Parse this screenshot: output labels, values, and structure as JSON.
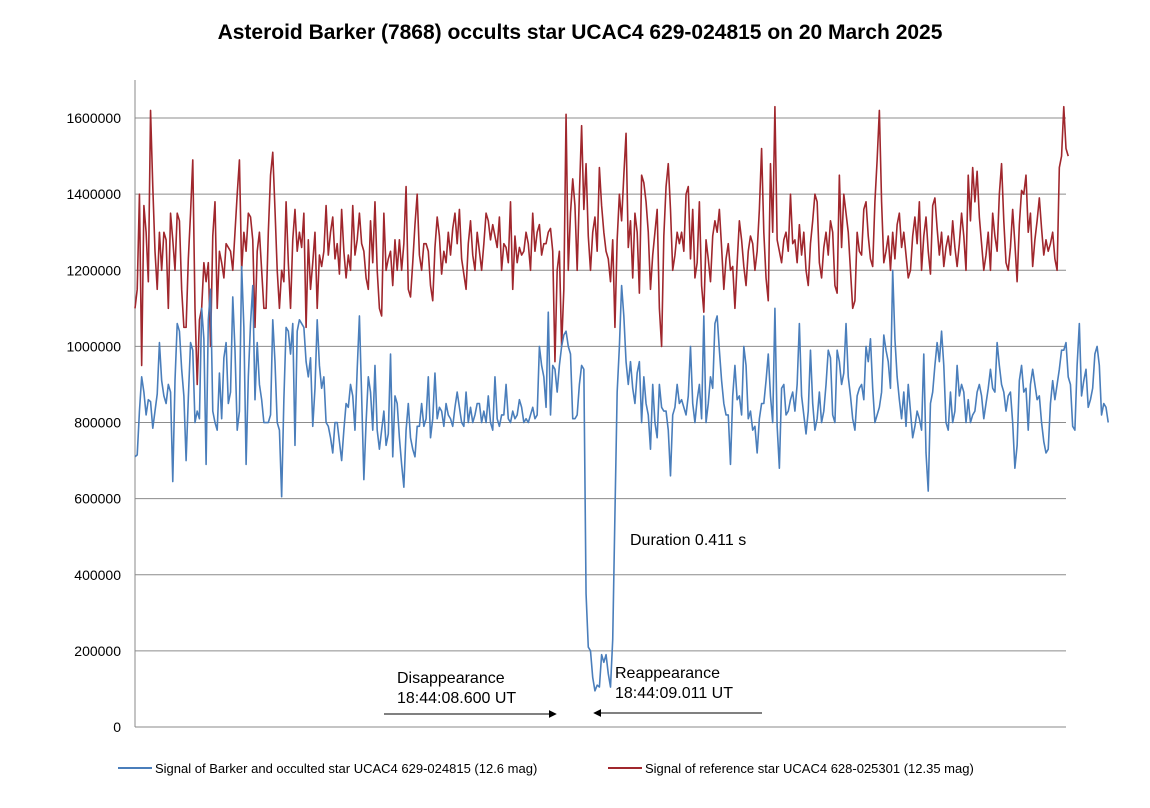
{
  "chart_data": {
    "type": "line",
    "title": "Asteroid Barker (7868) occults star UCAC4 629-024815 on 20 March 2025",
    "xlabel": "",
    "ylabel": "",
    "ylim": [
      0,
      1700000
    ],
    "yticks": [
      0,
      200000,
      400000,
      600000,
      800000,
      1000000,
      1200000,
      1400000,
      1600000
    ],
    "ytick_labels": [
      "0",
      "200000",
      "400000",
      "600000",
      "800000",
      "1000000",
      "1200000",
      "1400000",
      "1600000"
    ],
    "grid": "horizontal",
    "legend_position": "bottom",
    "x_sample_count": 420,
    "series": [
      {
        "name": "Signal of Barker and occulted star UCAC4 629-024815 (12.6 mag)",
        "color": "#4a7ebb",
        "event": {
          "drop_start": 205,
          "drop_end": 215,
          "low_level_min": 90000,
          "low_level_max": 210000
        },
        "values": [
          710000,
          715000,
          830000,
          920000,
          880000,
          820000,
          860000,
          855000,
          785000,
          830000,
          875000,
          1010000,
          910000,
          870000,
          850000,
          900000,
          880000,
          645000,
          910000,
          1060000,
          1040000,
          940000,
          870000,
          700000,
          865000,
          1010000,
          990000,
          800000,
          830000,
          810000,
          1100000,
          1020000,
          690000,
          1070000,
          1150000,
          830000,
          800000,
          780000,
          930000,
          810000,
          970000,
          1010000,
          850000,
          880000,
          1130000,
          990000,
          780000,
          830000,
          1210000,
          1050000,
          690000,
          920000,
          1060000,
          1160000,
          860000,
          1010000,
          900000,
          860000,
          800000,
          800000,
          800000,
          820000,
          1070000,
          960000,
          800000,
          780000,
          605000,
          860000,
          1050000,
          1040000,
          980000,
          1060000,
          740000,
          1040000,
          1070000,
          1060000,
          1050000,
          960000,
          920000,
          970000,
          790000,
          890000,
          1070000,
          950000,
          890000,
          920000,
          800000,
          790000,
          760000,
          720000,
          800000,
          800000,
          750000,
          700000,
          780000,
          850000,
          840000,
          900000,
          870000,
          780000,
          940000,
          1080000,
          870000,
          650000,
          800000,
          920000,
          880000,
          780000,
          950000,
          780000,
          730000,
          780000,
          830000,
          740000,
          770000,
          980000,
          710000,
          870000,
          850000,
          760000,
          690000,
          630000,
          780000,
          850000,
          760000,
          730000,
          710000,
          790000,
          790000,
          850000,
          790000,
          810000,
          920000,
          760000,
          810000,
          930000,
          810000,
          840000,
          830000,
          790000,
          850000,
          820000,
          810000,
          790000,
          840000,
          880000,
          840000,
          800000,
          790000,
          880000,
          800000,
          840000,
          800000,
          820000,
          850000,
          850000,
          800000,
          830000,
          800000,
          870000,
          800000,
          780000,
          920000,
          810000,
          790000,
          820000,
          820000,
          900000,
          810000,
          800000,
          830000,
          810000,
          820000,
          860000,
          840000,
          800000,
          810000,
          800000,
          820000,
          840000,
          810000,
          820000,
          1000000,
          950000,
          920000,
          840000,
          1090000,
          820000,
          950000,
          940000,
          880000,
          950000,
          1000000,
          1030000,
          1040000,
          1000000,
          980000,
          810000,
          810000,
          820000,
          900000,
          950000,
          940000,
          350000,
          210000,
          200000,
          130000,
          95000,
          110000,
          105000,
          190000,
          170000,
          190000,
          140000,
          105000,
          230000,
          560000,
          880000,
          1000000,
          1160000,
          1080000,
          960000,
          900000,
          960000,
          890000,
          850000,
          930000,
          960000,
          800000,
          920000,
          850000,
          820000,
          730000,
          900000,
          800000,
          760000,
          900000,
          840000,
          830000,
          830000,
          780000,
          660000,
          820000,
          840000,
          900000,
          850000,
          860000,
          840000,
          820000,
          870000,
          1000000,
          850000,
          800000,
          860000,
          900000,
          810000,
          1080000,
          800000,
          850000,
          920000,
          890000,
          1060000,
          1080000,
          990000,
          910000,
          850000,
          820000,
          820000,
          690000,
          870000,
          950000,
          860000,
          870000,
          820000,
          1000000,
          950000,
          810000,
          830000,
          780000,
          790000,
          720000,
          810000,
          850000,
          850000,
          910000,
          980000,
          870000,
          800000,
          1100000,
          790000,
          680000,
          890000,
          900000,
          820000,
          830000,
          860000,
          880000,
          830000,
          900000,
          1060000,
          870000,
          820000,
          770000,
          830000,
          990000,
          850000,
          780000,
          810000,
          880000,
          800000,
          830000,
          900000,
          990000,
          970000,
          820000,
          800000,
          990000,
          960000,
          900000,
          930000,
          1060000,
          920000,
          870000,
          810000,
          780000,
          870000,
          890000,
          900000,
          860000,
          1000000,
          960000,
          1020000,
          890000,
          800000,
          820000,
          840000,
          880000,
          1030000,
          990000,
          960000,
          890000,
          1200000,
          1020000,
          920000,
          860000,
          810000,
          880000,
          790000,
          900000,
          830000,
          760000,
          790000,
          830000,
          810000,
          780000,
          980000,
          720000,
          620000,
          850000,
          880000,
          950000,
          1010000,
          960000,
          1040000,
          950000,
          800000,
          780000,
          880000,
          800000,
          830000,
          950000,
          870000,
          900000,
          880000,
          800000,
          860000,
          800000,
          820000,
          830000,
          880000,
          900000,
          870000,
          810000,
          850000,
          890000,
          940000,
          890000,
          880000,
          1010000,
          950000,
          900000,
          880000,
          830000,
          870000,
          880000,
          800000,
          680000,
          740000,
          910000,
          950000,
          880000,
          890000,
          780000,
          900000,
          940000,
          900000,
          860000,
          870000,
          800000,
          750000,
          720000,
          730000,
          850000,
          910000,
          860000,
          900000,
          940000,
          990000,
          990000,
          1010000,
          920000,
          900000,
          790000,
          780000,
          950000,
          1060000,
          870000,
          910000,
          940000,
          840000,
          860000,
          890000,
          980000,
          1000000,
          950000,
          820000,
          850000,
          840000,
          800000
        ]
      },
      {
        "name": "Signal of reference star UCAC4 628-025301 (12.35 mag)",
        "color": "#a0272d",
        "values": [
          1100000,
          1150000,
          1400000,
          950000,
          1370000,
          1300000,
          1170000,
          1620000,
          1420000,
          1250000,
          1150000,
          1300000,
          1200000,
          1300000,
          1280000,
          1100000,
          1350000,
          1280000,
          1200000,
          1350000,
          1330000,
          1150000,
          1050000,
          1050000,
          1230000,
          1350000,
          1490000,
          1100000,
          900000,
          1070000,
          1100000,
          1220000,
          1170000,
          1220000,
          1000000,
          1290000,
          1380000,
          1100000,
          1250000,
          1220000,
          1180000,
          1270000,
          1260000,
          1250000,
          1200000,
          1300000,
          1400000,
          1490000,
          1200000,
          1300000,
          1250000,
          1350000,
          1340000,
          1280000,
          1050000,
          1250000,
          1300000,
          1200000,
          1100000,
          1100000,
          1300000,
          1450000,
          1510000,
          1360000,
          1200000,
          1100000,
          1200000,
          1170000,
          1380000,
          1220000,
          1100000,
          1280000,
          1360000,
          1250000,
          1300000,
          1260000,
          1350000,
          1050000,
          1280000,
          1150000,
          1220000,
          1300000,
          1100000,
          1240000,
          1210000,
          1250000,
          1370000,
          1240000,
          1300000,
          1340000,
          1230000,
          1270000,
          1190000,
          1360000,
          1250000,
          1180000,
          1240000,
          1200000,
          1370000,
          1240000,
          1280000,
          1350000,
          1270000,
          1250000,
          1180000,
          1150000,
          1330000,
          1220000,
          1380000,
          1200000,
          1100000,
          1080000,
          1350000,
          1200000,
          1230000,
          1250000,
          1160000,
          1280000,
          1200000,
          1280000,
          1200000,
          1270000,
          1420000,
          1150000,
          1130000,
          1220000,
          1320000,
          1400000,
          1240000,
          1200000,
          1270000,
          1270000,
          1250000,
          1160000,
          1120000,
          1260000,
          1340000,
          1290000,
          1190000,
          1250000,
          1220000,
          1300000,
          1240000,
          1310000,
          1350000,
          1270000,
          1360000,
          1230000,
          1190000,
          1150000,
          1270000,
          1330000,
          1240000,
          1200000,
          1300000,
          1250000,
          1200000,
          1270000,
          1350000,
          1330000,
          1280000,
          1320000,
          1290000,
          1260000,
          1340000,
          1200000,
          1270000,
          1260000,
          1220000,
          1380000,
          1150000,
          1290000,
          1220000,
          1260000,
          1240000,
          1250000,
          1300000,
          1270000,
          1200000,
          1350000,
          1250000,
          1300000,
          1320000,
          1240000,
          1270000,
          1270000,
          1300000,
          1310000,
          1250000,
          960000,
          1200000,
          1250000,
          1000000,
          1150000,
          1610000,
          1200000,
          1350000,
          1440000,
          1370000,
          1200000,
          1400000,
          1580000,
          1360000,
          1480000,
          1290000,
          1200000,
          1300000,
          1340000,
          1250000,
          1470000,
          1370000,
          1300000,
          1250000,
          1230000,
          1170000,
          1280000,
          1050000,
          1280000,
          1400000,
          1330000,
          1450000,
          1560000,
          1260000,
          1330000,
          1180000,
          1350000,
          1300000,
          1140000,
          1450000,
          1430000,
          1380000,
          1300000,
          1150000,
          1240000,
          1300000,
          1360000,
          1100000,
          1000000,
          1290000,
          1420000,
          1480000,
          1360000,
          1200000,
          1240000,
          1300000,
          1270000,
          1300000,
          1250000,
          1400000,
          1420000,
          1230000,
          1360000,
          1180000,
          1220000,
          1380000,
          1160000,
          1090000,
          1280000,
          1230000,
          1170000,
          1290000,
          1330000,
          1300000,
          1360000,
          1260000,
          1150000,
          1230000,
          1270000,
          1200000,
          1210000,
          1100000,
          1220000,
          1330000,
          1280000,
          1210000,
          1160000,
          1250000,
          1290000,
          1270000,
          1200000,
          1250000,
          1360000,
          1520000,
          1300000,
          1180000,
          1120000,
          1480000,
          1300000,
          1630000,
          1280000,
          1250000,
          1220000,
          1280000,
          1300000,
          1250000,
          1400000,
          1270000,
          1280000,
          1220000,
          1320000,
          1240000,
          1300000,
          1200000,
          1160000,
          1270000,
          1330000,
          1400000,
          1380000,
          1220000,
          1180000,
          1260000,
          1300000,
          1240000,
          1330000,
          1300000,
          1160000,
          1140000,
          1450000,
          1260000,
          1400000,
          1350000,
          1300000,
          1200000,
          1100000,
          1120000,
          1300000,
          1250000,
          1240000,
          1360000,
          1380000,
          1290000,
          1230000,
          1210000,
          1380000,
          1490000,
          1620000,
          1380000,
          1220000,
          1250000,
          1290000,
          1200000,
          1300000,
          1230000,
          1320000,
          1350000,
          1260000,
          1300000,
          1240000,
          1180000,
          1200000,
          1290000,
          1340000,
          1270000,
          1380000,
          1200000,
          1290000,
          1340000,
          1250000,
          1190000,
          1370000,
          1390000,
          1310000,
          1240000,
          1300000,
          1210000,
          1260000,
          1290000,
          1240000,
          1330000,
          1260000,
          1210000,
          1270000,
          1350000,
          1290000,
          1200000,
          1450000,
          1330000,
          1470000,
          1380000,
          1460000,
          1340000,
          1270000,
          1200000,
          1240000,
          1300000,
          1200000,
          1350000,
          1290000,
          1250000,
          1400000,
          1480000,
          1330000,
          1220000,
          1200000,
          1260000,
          1360000,
          1270000,
          1170000,
          1320000,
          1410000,
          1400000,
          1450000,
          1300000,
          1350000,
          1210000,
          1280000,
          1330000,
          1390000,
          1310000,
          1240000,
          1280000,
          1250000,
          1270000,
          1300000,
          1230000,
          1200000,
          1470000,
          1500000,
          1630000,
          1520000,
          1500000
        ]
      }
    ],
    "annotations": {
      "duration": "Duration 0.411 s",
      "disappearance_label": "Disappearance",
      "disappearance_time": "18:44:08.600 UT",
      "reappearance_label": "Reappearance",
      "reappearance_time": "18:44:09.011 UT"
    }
  }
}
